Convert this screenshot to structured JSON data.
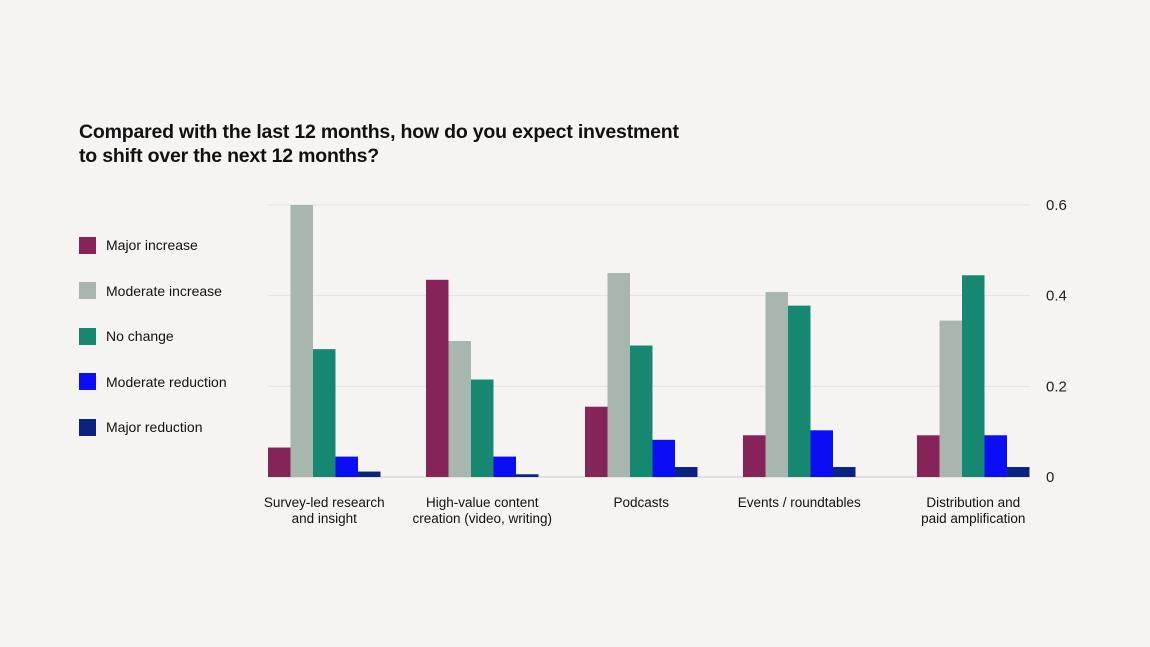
{
  "chart_data": {
    "type": "bar",
    "title_lines": [
      "Compared with the last 12 months, how do you expect investment",
      "to shift over the next 12 months?"
    ],
    "categories": [
      [
        "Survey-led research",
        "and insight"
      ],
      [
        "High-value content",
        "creation (video, writing)"
      ],
      [
        "Podcasts"
      ],
      [
        "Events / roundtables"
      ],
      [
        "Distribution and",
        "paid amplification"
      ]
    ],
    "series": [
      {
        "name": "Major increase",
        "color": "#862359",
        "values": [
          0.065,
          0.435,
          0.155,
          0.092,
          0.092
        ]
      },
      {
        "name": "Moderate increase",
        "color": "#a8b6ae",
        "values": [
          0.6,
          0.3,
          0.45,
          0.408,
          0.345
        ]
      },
      {
        "name": "No change",
        "color": "#168770",
        "values": [
          0.282,
          0.215,
          0.29,
          0.378,
          0.445
        ]
      },
      {
        "name": "Moderate reduction",
        "color": "#0b0ef5",
        "values": [
          0.045,
          0.045,
          0.082,
          0.103,
          0.092
        ]
      },
      {
        "name": "Major reduction",
        "color": "#0a2280",
        "values": [
          0.012,
          0.006,
          0.022,
          0.022,
          0.022
        ]
      }
    ],
    "ylim": [
      0,
      0.6
    ],
    "yticks": [
      0,
      0.2,
      0.4,
      0.6
    ],
    "ytick_labels": [
      "0",
      "0.2",
      "0.4",
      "0.6"
    ],
    "y_axis_side": "right",
    "grid": true,
    "legend_position": "left"
  }
}
